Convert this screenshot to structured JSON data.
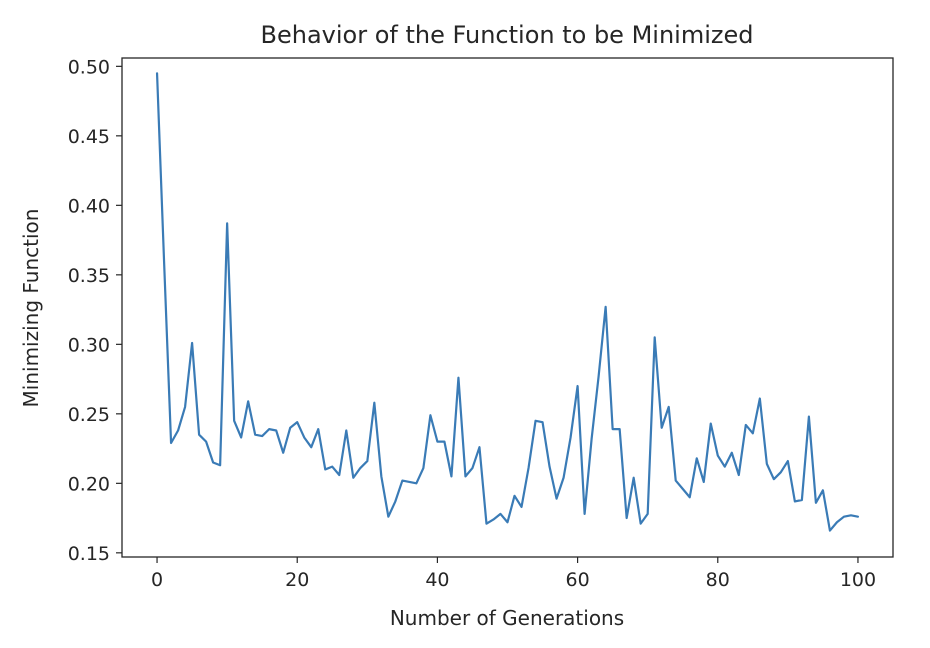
{
  "chart_data": {
    "type": "line",
    "title": "Behavior of the Function to be Minimized",
    "xlabel": "Number of Generations",
    "ylabel": "Minimizing Function",
    "xlim": [
      -5,
      105
    ],
    "ylim": [
      0.147,
      0.506
    ],
    "xticks": [
      0,
      20,
      40,
      60,
      80,
      100
    ],
    "xtick_labels": [
      "0",
      "20",
      "40",
      "60",
      "80",
      "100"
    ],
    "yticks": [
      0.15,
      0.2,
      0.25,
      0.3,
      0.35,
      0.4,
      0.45,
      0.5
    ],
    "ytick_labels": [
      "0.15",
      "0.20",
      "0.25",
      "0.30",
      "0.35",
      "0.40",
      "0.45",
      "0.50"
    ],
    "grid": false,
    "line_color": "#3a7bb6",
    "series": [
      {
        "x": [
          0,
          1,
          2,
          3,
          4,
          5,
          6,
          7,
          8,
          9,
          10,
          11,
          12,
          13,
          14,
          15,
          16,
          17,
          18,
          19,
          20,
          21,
          22,
          23,
          24,
          25,
          26,
          27,
          28,
          29,
          30,
          31,
          32,
          33,
          34,
          35,
          36,
          37,
          38,
          39,
          40,
          41,
          42,
          43,
          44,
          45,
          46,
          47,
          48,
          49,
          50,
          51,
          52,
          53,
          54,
          55,
          56,
          57,
          58,
          59,
          60,
          61,
          62,
          63,
          64,
          65,
          66,
          67,
          68,
          69,
          70,
          71,
          72,
          73,
          74,
          75,
          76,
          77,
          78,
          79,
          80,
          81,
          82,
          83,
          84,
          85,
          86,
          87,
          88,
          89,
          90,
          91,
          92,
          93,
          94,
          95,
          96,
          97,
          98,
          99,
          100
        ],
        "values": [
          0.495,
          0.36,
          0.229,
          0.238,
          0.255,
          0.301,
          0.235,
          0.23,
          0.215,
          0.213,
          0.387,
          0.245,
          0.233,
          0.259,
          0.235,
          0.234,
          0.239,
          0.238,
          0.222,
          0.24,
          0.244,
          0.233,
          0.226,
          0.239,
          0.21,
          0.212,
          0.206,
          0.238,
          0.204,
          0.211,
          0.216,
          0.258,
          0.205,
          0.176,
          0.187,
          0.202,
          0.201,
          0.2,
          0.211,
          0.249,
          0.23,
          0.23,
          0.205,
          0.276,
          0.205,
          0.211,
          0.226,
          0.171,
          0.174,
          0.178,
          0.172,
          0.191,
          0.183,
          0.211,
          0.245,
          0.244,
          0.212,
          0.189,
          0.204,
          0.233,
          0.27,
          0.178,
          0.232,
          0.277,
          0.327,
          0.239,
          0.239,
          0.175,
          0.204,
          0.171,
          0.178,
          0.305,
          0.24,
          0.255,
          0.202,
          0.196,
          0.19,
          0.218,
          0.201,
          0.243,
          0.22,
          0.212,
          0.222,
          0.206,
          0.242,
          0.236,
          0.261,
          0.214,
          0.203,
          0.208,
          0.216,
          0.187,
          0.188,
          0.248,
          0.186,
          0.195,
          0.166,
          0.172,
          0.176,
          0.177,
          0.176
        ]
      }
    ]
  }
}
